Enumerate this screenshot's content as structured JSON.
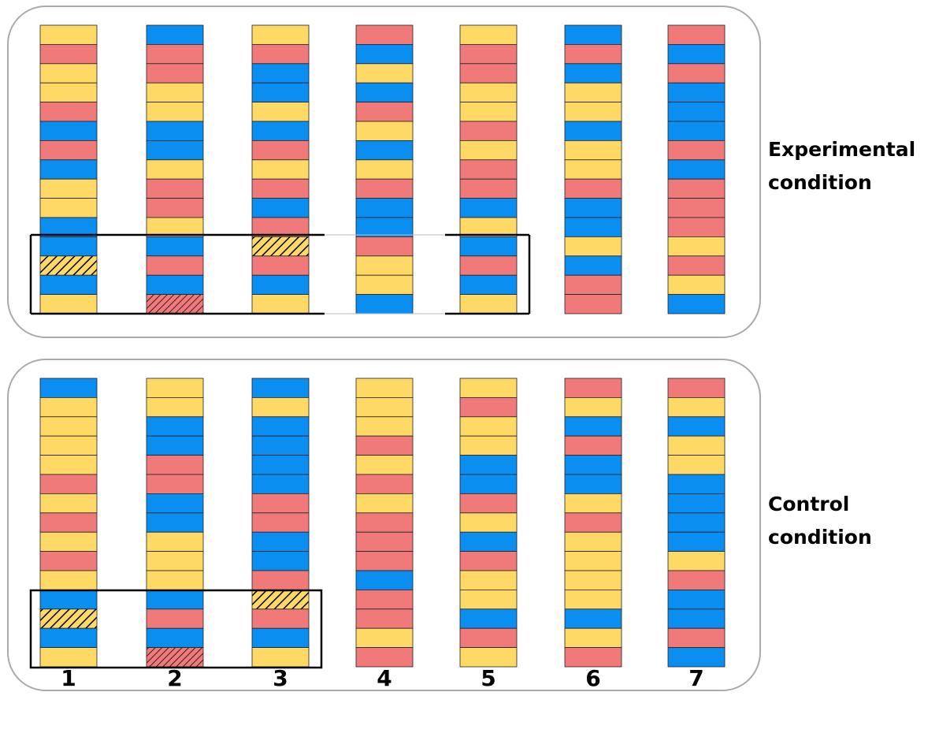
{
  "panels": [
    {
      "label": [
        "Experimental",
        "condition"
      ]
    },
    {
      "label": [
        "Control",
        "condition"
      ]
    }
  ],
  "column_numbers": [
    "1",
    "2",
    "3",
    "4",
    "5",
    "6",
    "7"
  ]
}
